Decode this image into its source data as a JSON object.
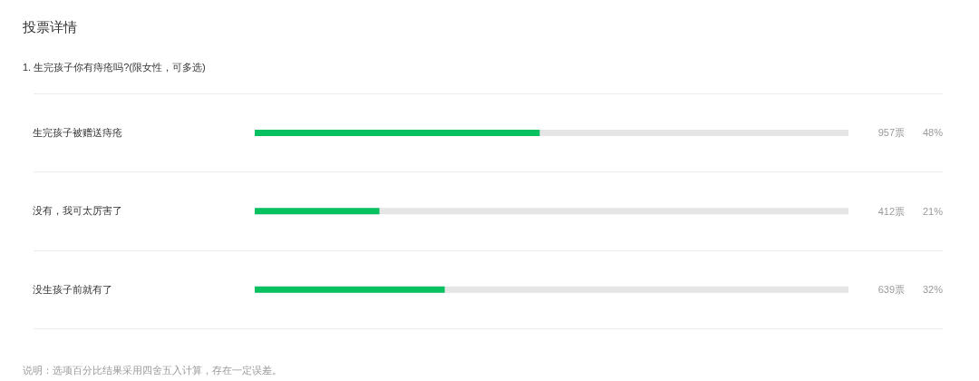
{
  "chart_data": {
    "type": "bar",
    "orientation": "horizontal",
    "title": "投票详情",
    "subtitle": "1. 生完孩子你有痔疮吗?(限女性，可多选)",
    "categories": [
      "生完孩子被赠送痔疮",
      "没有，我可太厉害了",
      "没生孩子前就有了"
    ],
    "values": [
      48,
      21,
      32
    ],
    "value_labels": [
      "48%",
      "21%",
      "32%"
    ],
    "color": "#07c160",
    "xlim": [
      0,
      100
    ],
    "tick_labels": "y",
    "annotations": [
      "957票",
      "412票",
      "639票",
      "说明：选项百分比结果采用四舍五入计算，存在一定误差。"
    ]
  }
}
